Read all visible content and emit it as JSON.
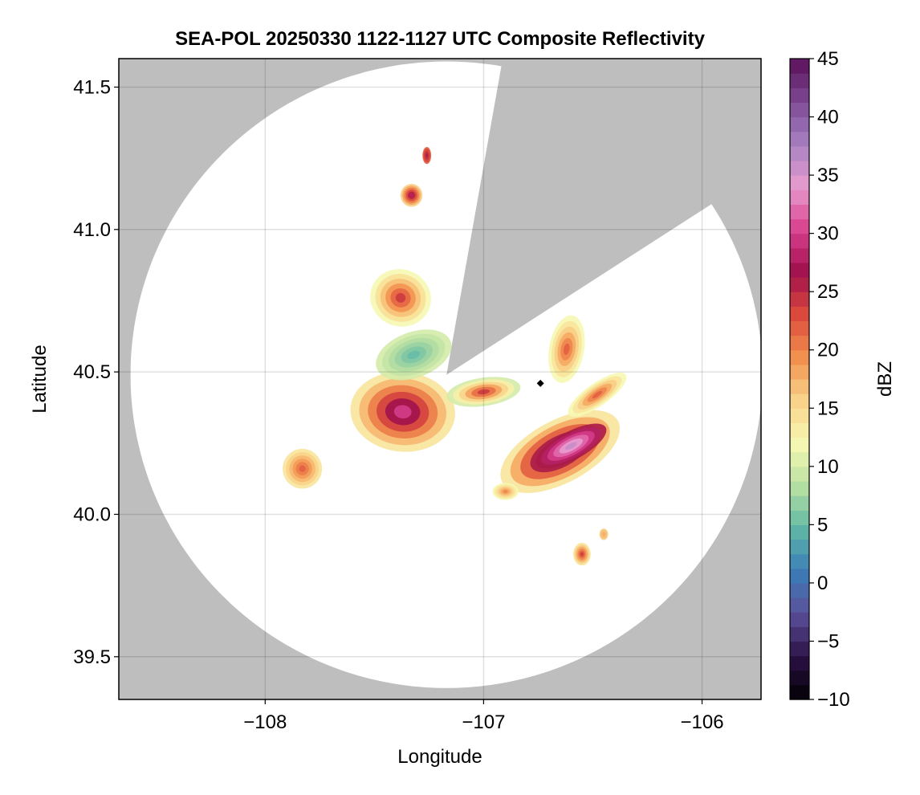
{
  "chart_data": {
    "type": "heatmap",
    "subtype": "radar-composite-reflectivity",
    "title": "SEA-POL 20250330 1122-1127 UTC Composite Reflectivity",
    "xlabel": "Longitude",
    "ylabel": "Latitude",
    "xlim": [
      -108.67,
      -105.73
    ],
    "ylim": [
      39.35,
      41.6
    ],
    "x_ticks": [
      -108,
      -107,
      -106
    ],
    "x_tick_labels": [
      "−108",
      "−107",
      "−106"
    ],
    "y_ticks": [
      39.5,
      40.0,
      40.5,
      41.0,
      41.5
    ],
    "y_tick_labels": [
      "39.5",
      "40.0",
      "40.5",
      "41.0",
      "41.5"
    ],
    "grid": true,
    "background_color": "#bebebe",
    "coverage_color": "#ffffff",
    "radar": {
      "center_lon": -107.17,
      "center_lat": 40.49,
      "range_lat_deg": 1.1,
      "blocked_sector_deg": [
        10,
        57
      ]
    },
    "site_marker": {
      "lon": -106.74,
      "lat": 40.46,
      "symbol": "diamond",
      "color": "#000000"
    },
    "colorbar": {
      "label": "dBZ",
      "min": -10,
      "max": 45,
      "step": 1.25,
      "ticks": [
        -10,
        -5,
        0,
        5,
        10,
        15,
        20,
        25,
        30,
        35,
        40,
        45
      ],
      "tick_labels": [
        "−10",
        "−5",
        "0",
        "5",
        "10",
        "15",
        "20",
        "25",
        "30",
        "35",
        "40",
        "45"
      ],
      "colormap": "spectral-magma",
      "colors": [
        "#000004",
        "#2c1146",
        "#5b4f99",
        "#3a7db8",
        "#5fb7a6",
        "#b8e0a2",
        "#f6f8b2",
        "#f9d38a",
        "#f2924f",
        "#dd4b3c",
        "#a0104c",
        "#d9408e",
        "#e89ccf",
        "#a781c2",
        "#7d4994",
        "#5a0f58"
      ]
    },
    "cells": [
      {
        "name": "echo-se-line",
        "lon": -106.65,
        "lat": 40.22,
        "dlon": 0.3,
        "dlat": 0.11,
        "angle": -28,
        "peak_dbz": 34,
        "edge_dbz": 14
      },
      {
        "name": "echo-se-core",
        "lon": -106.6,
        "lat": 40.24,
        "dlon": 0.18,
        "dlat": 0.05,
        "angle": -28,
        "peak_dbz": 36,
        "edge_dbz": 26
      },
      {
        "name": "echo-se-ne-arm",
        "lon": -106.48,
        "lat": 40.42,
        "dlon": 0.16,
        "dlat": 0.04,
        "angle": -35,
        "peak_dbz": 22,
        "edge_dbz": 12
      },
      {
        "name": "echo-e-cluster",
        "lon": -106.62,
        "lat": 40.58,
        "dlon": 0.08,
        "dlat": 0.12,
        "angle": 10,
        "peak_dbz": 22,
        "edge_dbz": 12
      },
      {
        "name": "echo-central-west",
        "lon": -107.37,
        "lat": 40.36,
        "dlon": 0.24,
        "dlat": 0.14,
        "angle": 5,
        "peak_dbz": 30,
        "edge_dbz": 14
      },
      {
        "name": "echo-central-blue",
        "lon": -107.32,
        "lat": 40.56,
        "dlon": 0.18,
        "dlat": 0.08,
        "angle": -20,
        "peak_dbz": 5,
        "edge_dbz": 10
      },
      {
        "name": "echo-north-band",
        "lon": -107.38,
        "lat": 40.76,
        "dlon": 0.14,
        "dlat": 0.1,
        "angle": 20,
        "peak_dbz": 24,
        "edge_dbz": 12
      },
      {
        "name": "echo-center-east",
        "lon": -107.0,
        "lat": 40.43,
        "dlon": 0.17,
        "dlat": 0.05,
        "angle": -8,
        "peak_dbz": 24,
        "edge_dbz": 10
      },
      {
        "name": "echo-far-west",
        "lon": -107.83,
        "lat": 40.16,
        "dlon": 0.09,
        "dlat": 0.07,
        "angle": 0,
        "peak_dbz": 22,
        "edge_dbz": 14
      },
      {
        "name": "echo-north-isolated",
        "lon": -107.33,
        "lat": 41.12,
        "dlon": 0.05,
        "dlat": 0.04,
        "angle": 0,
        "peak_dbz": 28,
        "edge_dbz": 16
      },
      {
        "name": "echo-north-dot",
        "lon": -107.26,
        "lat": 41.26,
        "dlon": 0.02,
        "dlat": 0.03,
        "angle": 0,
        "peak_dbz": 26,
        "edge_dbz": 22
      },
      {
        "name": "echo-south-cells",
        "lon": -106.55,
        "lat": 39.86,
        "dlon": 0.04,
        "dlat": 0.04,
        "angle": 0,
        "peak_dbz": 24,
        "edge_dbz": 14
      },
      {
        "name": "echo-south-small",
        "lon": -106.45,
        "lat": 39.93,
        "dlon": 0.02,
        "dlat": 0.02,
        "angle": 0,
        "peak_dbz": 18,
        "edge_dbz": 16
      },
      {
        "name": "echo-south-mid",
        "lon": -106.9,
        "lat": 40.08,
        "dlon": 0.06,
        "dlat": 0.03,
        "angle": 0,
        "peak_dbz": 20,
        "edge_dbz": 12
      }
    ]
  }
}
